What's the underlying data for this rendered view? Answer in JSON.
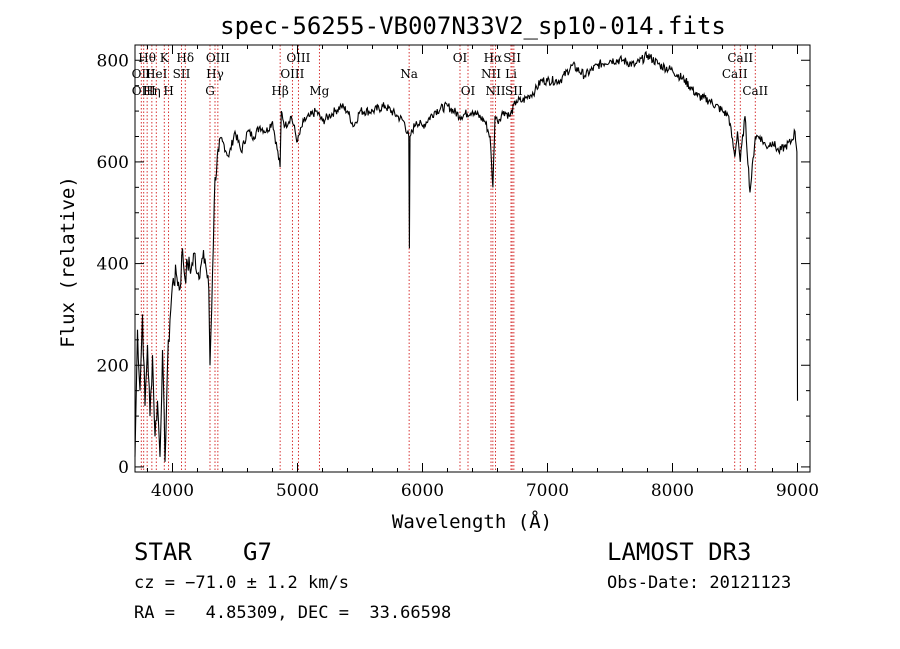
{
  "chart_data": {
    "type": "line",
    "title": "spec-56255-VB007N33V2_sp10-014.fits",
    "xlabel": "Wavelength (Å)",
    "ylabel": "Flux (relative)",
    "xlim": [
      3700,
      9100
    ],
    "ylim": [
      -10,
      830
    ],
    "x_ticks": [
      4000,
      5000,
      6000,
      7000,
      8000,
      9000
    ],
    "y_ticks": [
      0,
      200,
      400,
      600,
      800
    ],
    "grid": false,
    "series": [
      {
        "name": "spectrum",
        "x": [
          3700,
          3720,
          3740,
          3760,
          3780,
          3800,
          3820,
          3840,
          3860,
          3880,
          3900,
          3920,
          3940,
          3960,
          3980,
          4000,
          4030,
          4060,
          4080,
          4100,
          4120,
          4150,
          4180,
          4200,
          4230,
          4260,
          4290,
          4300,
          4320,
          4340,
          4370,
          4400,
          4450,
          4500,
          4550,
          4600,
          4650,
          4700,
          4750,
          4800,
          4861,
          4870,
          4900,
          4950,
          5000,
          5050,
          5100,
          5150,
          5200,
          5250,
          5300,
          5350,
          5400,
          5450,
          5500,
          5600,
          5700,
          5800,
          5850,
          5890,
          5895,
          5900,
          5950,
          6000,
          6100,
          6200,
          6300,
          6400,
          6500,
          6540,
          6563,
          6580,
          6600,
          6650,
          6700,
          6750,
          6800,
          6850,
          6900,
          6950,
          7000,
          7100,
          7200,
          7300,
          7400,
          7500,
          7600,
          7700,
          7800,
          7900,
          8000,
          8100,
          8200,
          8300,
          8400,
          8450,
          8498,
          8520,
          8542,
          8580,
          8620,
          8662,
          8700,
          8750,
          8800,
          8850,
          8900,
          8950,
          8980,
          8995,
          9000
        ],
        "y": [
          20,
          270,
          150,
          300,
          120,
          240,
          100,
          220,
          60,
          130,
          20,
          230,
          10,
          200,
          290,
          360,
          380,
          350,
          430,
          370,
          400,
          390,
          420,
          380,
          400,
          410,
          350,
          200,
          380,
          570,
          620,
          640,
          610,
          660,
          620,
          660,
          650,
          670,
          660,
          680,
          590,
          700,
          670,
          690,
          640,
          680,
          690,
          700,
          680,
          690,
          700,
          710,
          700,
          670,
          700,
          700,
          710,
          690,
          680,
          650,
          430,
          650,
          680,
          670,
          700,
          710,
          690,
          700,
          680,
          650,
          550,
          690,
          680,
          700,
          690,
          720,
          720,
          730,
          740,
          760,
          760,
          760,
          790,
          770,
          790,
          800,
          800,
          790,
          810,
          790,
          780,
          760,
          730,
          720,
          700,
          690,
          610,
          660,
          600,
          690,
          540,
          650,
          650,
          630,
          640,
          620,
          630,
          640,
          660,
          620,
          130
        ]
      }
    ],
    "line_markers": [
      {
        "wavelength": 3750,
        "label": "OII",
        "row": 2
      },
      {
        "wavelength": 3770,
        "label": "OIII",
        "row": 3
      },
      {
        "wavelength": 3797,
        "label": "Hθ",
        "row": 1
      },
      {
        "wavelength": 3835,
        "label": "Hη",
        "row": 3
      },
      {
        "wavelength": 3870,
        "label": "HeI",
        "row": 2
      },
      {
        "wavelength": 3934,
        "label": "K",
        "row": 1
      },
      {
        "wavelength": 3969,
        "label": "H",
        "row": 3
      },
      {
        "wavelength": 4072,
        "label": "SII",
        "row": 2
      },
      {
        "wavelength": 4102,
        "label": "Hδ",
        "row": 1
      },
      {
        "wavelength": 4300,
        "label": "G",
        "row": 3
      },
      {
        "wavelength": 4340,
        "label": "Hγ",
        "row": 2
      },
      {
        "wavelength": 4363,
        "label": "OIII",
        "row": 1
      },
      {
        "wavelength": 4861,
        "label": "Hβ",
        "row": 3
      },
      {
        "wavelength": 4959,
        "label": "OIII",
        "row": 2
      },
      {
        "wavelength": 5007,
        "label": "OIII",
        "row": 1
      },
      {
        "wavelength": 5175,
        "label": "Mg",
        "row": 3
      },
      {
        "wavelength": 5893,
        "label": "Na",
        "row": 2
      },
      {
        "wavelength": 6300,
        "label": "OI",
        "row": 1
      },
      {
        "wavelength": 6364,
        "label": "OI",
        "row": 3
      },
      {
        "wavelength": 6548,
        "label": "NII",
        "row": 2
      },
      {
        "wavelength": 6563,
        "label": "Hα",
        "row": 1
      },
      {
        "wavelength": 6584,
        "label": "NII",
        "row": 3
      },
      {
        "wavelength": 6708,
        "label": "Li",
        "row": 2
      },
      {
        "wavelength": 6717,
        "label": "SII",
        "row": 1
      },
      {
        "wavelength": 6731,
        "label": "SII",
        "row": 3
      },
      {
        "wavelength": 8498,
        "label": "CaII",
        "row": 2
      },
      {
        "wavelength": 8542,
        "label": "CaII",
        "row": 1
      },
      {
        "wavelength": 8662,
        "label": "CaII",
        "row": 3
      }
    ]
  },
  "info": {
    "object_class": "STAR",
    "subclass": "G7",
    "survey": "LAMOST DR3",
    "redshift_line": "cz = −71.0 ± 1.2 km/s",
    "obs_date": "Obs-Date: 20121123",
    "coords": "RA =   4.85309, DEC =  33.66598"
  },
  "colors": {
    "axis": "#000000",
    "spectrum": "#000000",
    "marker": "#cc0000"
  }
}
